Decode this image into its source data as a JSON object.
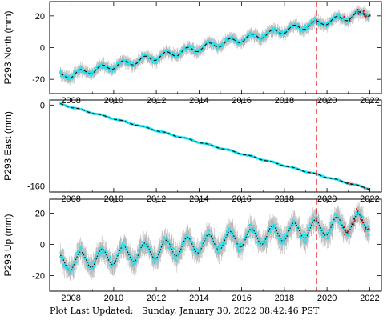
{
  "footer": {
    "label": "Plot Last Updated:",
    "timestamp": "Sunday, January 30, 2022 08:42:46 PST"
  },
  "colors": {
    "observations": "#19e3ef",
    "error_bars": "#b8b8b8",
    "recent_observations": "#e00000",
    "model": "#000000",
    "event_line": "#e00000"
  },
  "chart_data": [
    {
      "type": "scatter",
      "name": "north",
      "ylabel": "P293 North (mm)",
      "xlim": [
        2007.0,
        2022.55
      ],
      "ylim": [
        -29,
        29
      ],
      "xticks": [
        2008,
        2010,
        2012,
        2014,
        2016,
        2018,
        2020,
        2022
      ],
      "yticks": [
        -20,
        0,
        20
      ],
      "event_line_x": 2019.5,
      "trend": {
        "start": [
          2007.5,
          -18.5
        ],
        "end": [
          2022.0,
          22.0
        ]
      },
      "seasonal_amplitude": 2.0,
      "scatter_spread": 3.5,
      "recent_points_after": 2020.8
    },
    {
      "type": "scatter",
      "name": "east",
      "ylabel": "P293 East (mm)",
      "xlim": [
        2007.0,
        2022.55
      ],
      "ylim": [
        -172,
        10
      ],
      "xticks": [
        2008,
        2010,
        2012,
        2014,
        2016,
        2018,
        2020,
        2022
      ],
      "yticks": [
        -160,
        0
      ],
      "event_line_x": 2019.5,
      "trend": {
        "start": [
          2007.5,
          2.0
        ],
        "end": [
          2022.0,
          -166.0
        ]
      },
      "seasonal_amplitude": 1.0,
      "scatter_spread": 1.5,
      "recent_points_after": 2020.8
    },
    {
      "type": "scatter",
      "name": "up",
      "ylabel": "P293 Up (mm)",
      "xlim": [
        2007.0,
        2022.55
      ],
      "ylim": [
        -30,
        29
      ],
      "xticks": [
        2008,
        2010,
        2012,
        2014,
        2016,
        2018,
        2020,
        2022
      ],
      "yticks": [
        -20,
        0,
        20
      ],
      "event_line_x": 2019.5,
      "trend": {
        "start": [
          2007.5,
          -12.0
        ],
        "end": [
          2022.0,
          15.0
        ]
      },
      "seasonal_amplitude": 5.5,
      "scatter_spread": 6.5,
      "recent_points_after": 2020.8
    }
  ]
}
